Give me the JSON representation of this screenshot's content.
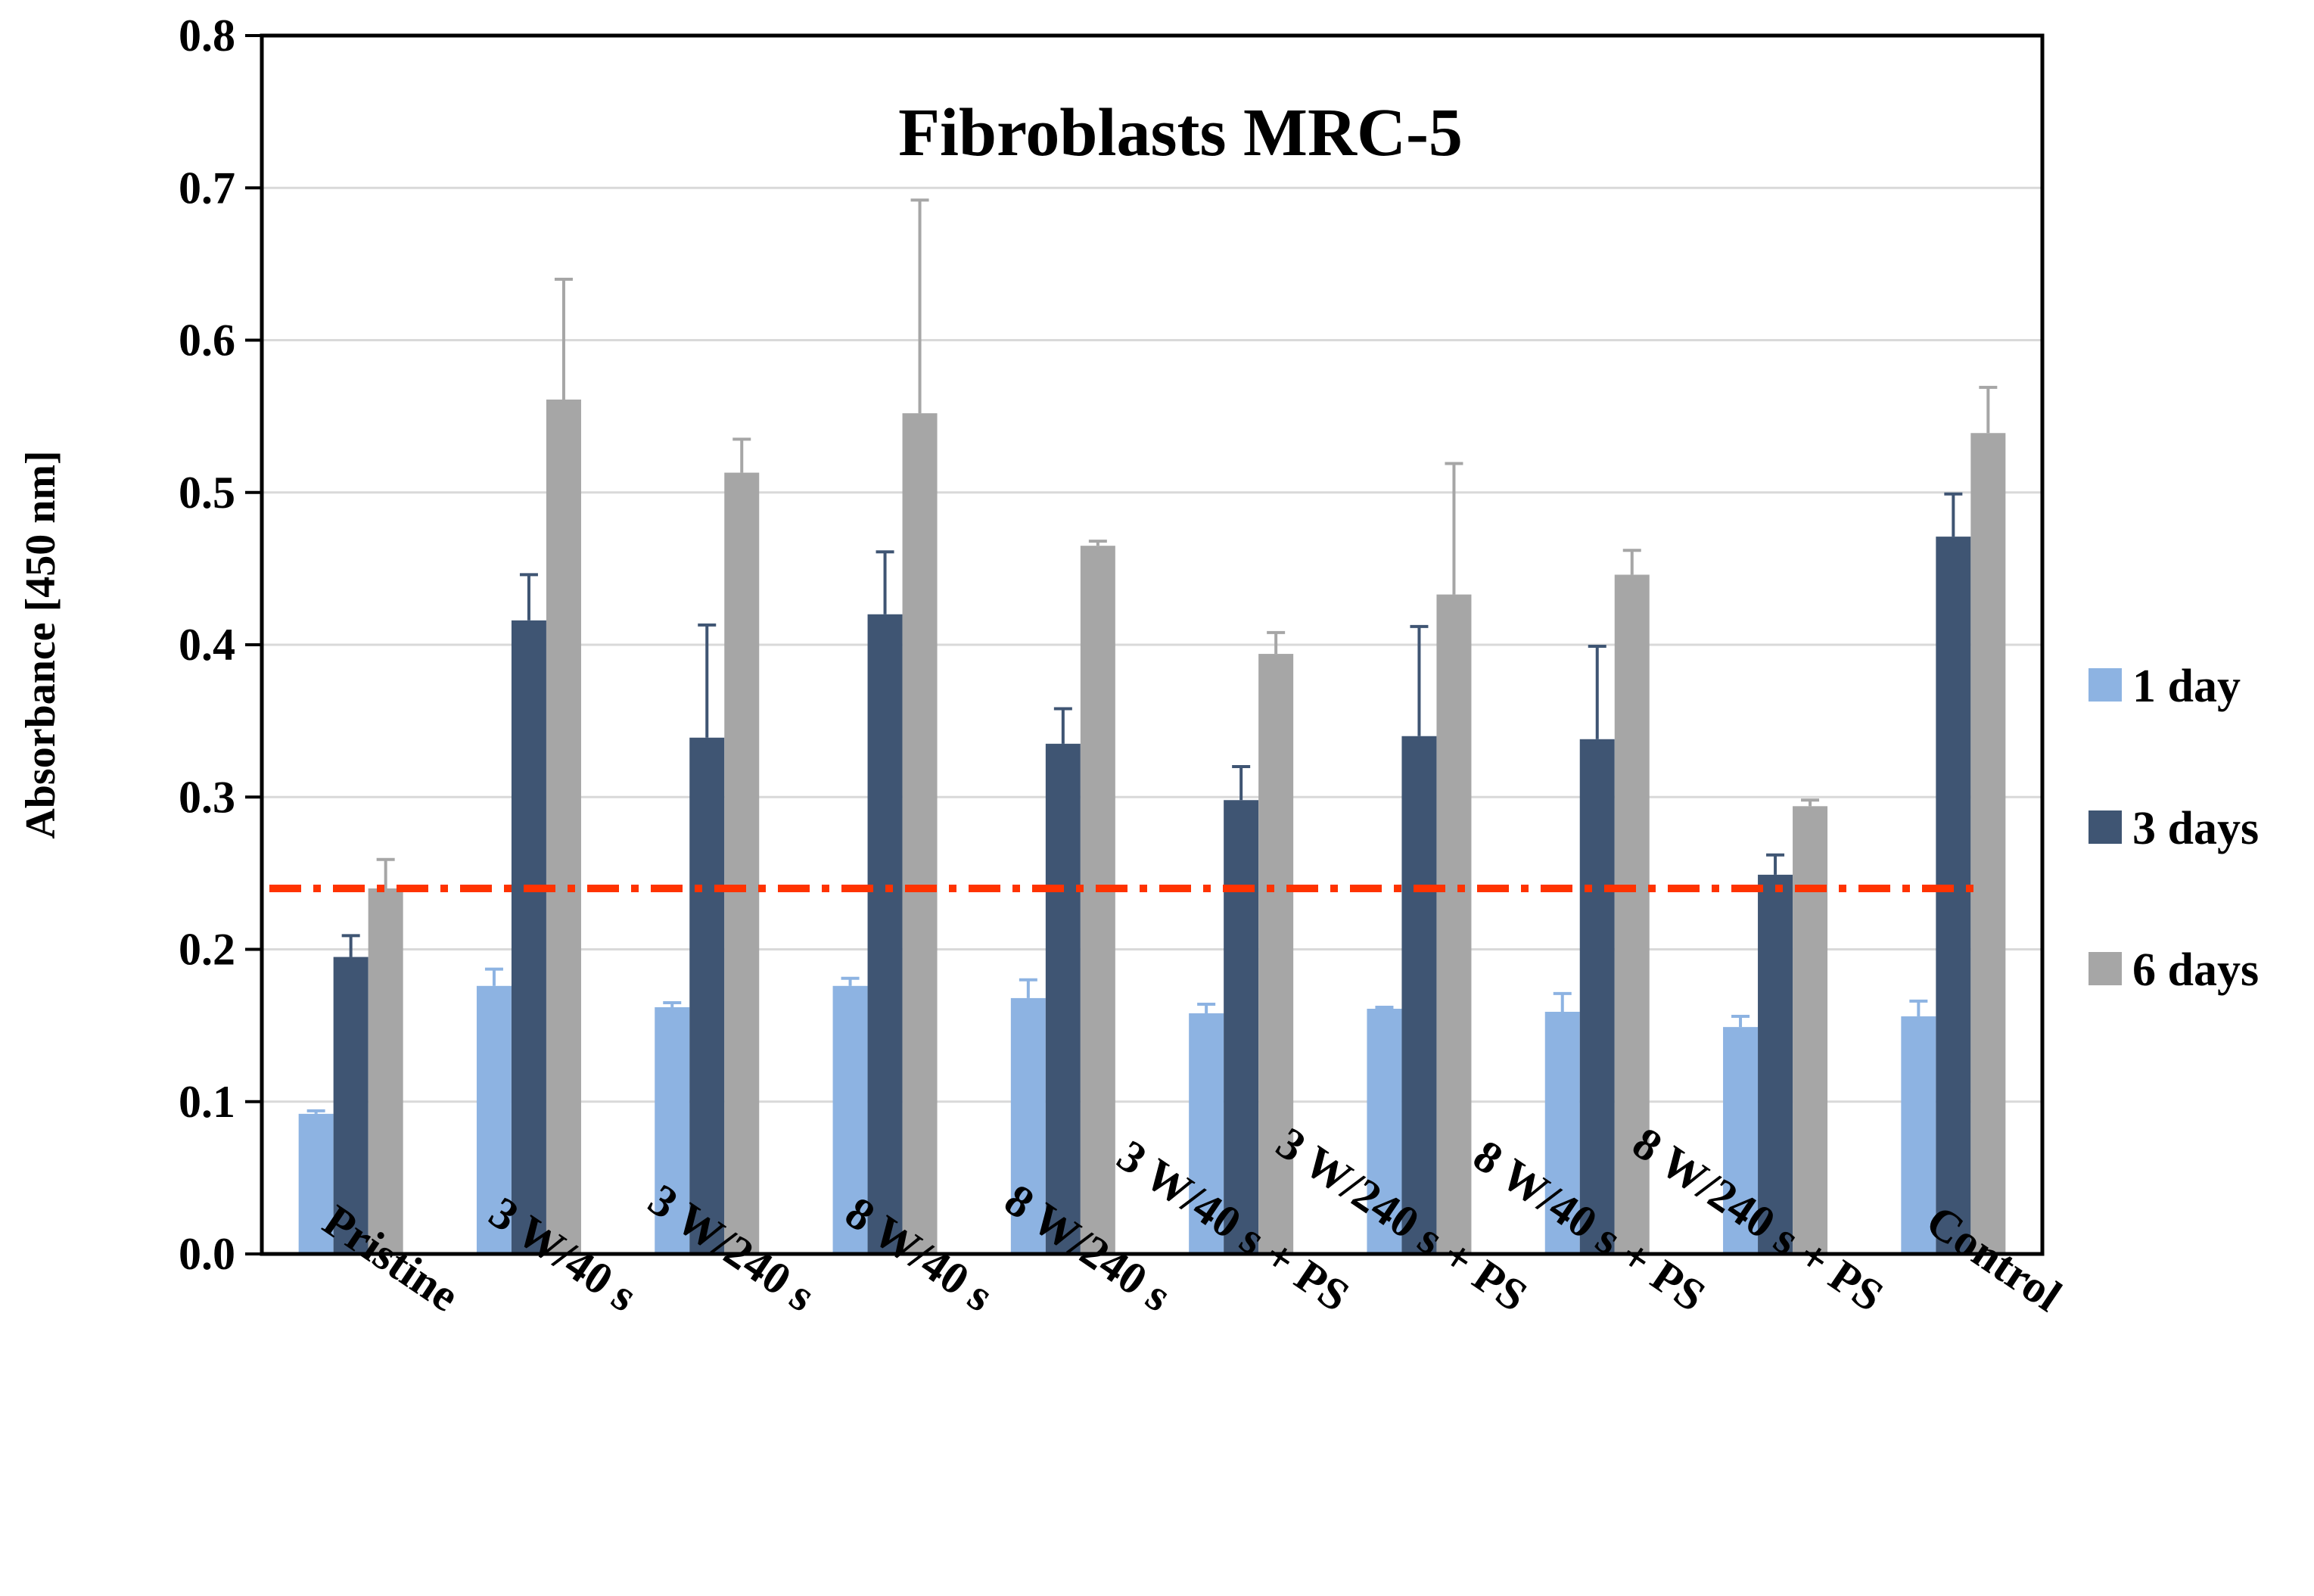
{
  "chart_data": {
    "type": "bar",
    "title": "Fibroblasts MRC-5",
    "xlabel": "",
    "ylabel": "Absorbance [450 nm]",
    "ylim": [
      0,
      0.8
    ],
    "yticks": [
      "0.0",
      "0.1",
      "0.2",
      "0.3",
      "0.4",
      "0.5",
      "0.6",
      "0.7",
      "0.8"
    ],
    "grid": true,
    "legend_position": "right",
    "categories": [
      "Pristine",
      "3 W/40 s",
      "3 W/240 s",
      "8 W/40 s",
      "8 W/240 s",
      "3 W/40 s + PS",
      "3 W/240 s + PS",
      "8 W/40 s + PS",
      "8 W/240 s + PS",
      "Control"
    ],
    "series": [
      {
        "name": "1 day",
        "color": "#8DB3E2",
        "errcolor": "#8DB3E2",
        "values": [
          0.092,
          0.176,
          0.162,
          0.176,
          0.168,
          0.158,
          0.161,
          0.159,
          0.149,
          0.156
        ],
        "errors": [
          0.002,
          0.011,
          0.003,
          0.005,
          0.012,
          0.006,
          0.001,
          0.012,
          0.007,
          0.01
        ]
      },
      {
        "name": "3 days",
        "color": "#3F5573",
        "errcolor": "#3F5573",
        "values": [
          0.195,
          0.416,
          0.339,
          0.42,
          0.335,
          0.298,
          0.34,
          0.338,
          0.249,
          0.471
        ],
        "errors": [
          0.014,
          0.03,
          0.074,
          0.041,
          0.023,
          0.022,
          0.072,
          0.061,
          0.013,
          0.028
        ]
      },
      {
        "name": "6 days",
        "color": "#A6A6A6",
        "errcolor": "#A6A6A6",
        "values": [
          0.24,
          0.561,
          0.513,
          0.552,
          0.465,
          0.394,
          0.433,
          0.446,
          0.294,
          0.539
        ],
        "errors": [
          0.019,
          0.079,
          0.022,
          0.14,
          0.003,
          0.014,
          0.086,
          0.016,
          0.004,
          0.03
        ]
      }
    ],
    "reference_line": {
      "value": 0.24,
      "color": "#FF3300",
      "style": "dash-dot"
    }
  }
}
